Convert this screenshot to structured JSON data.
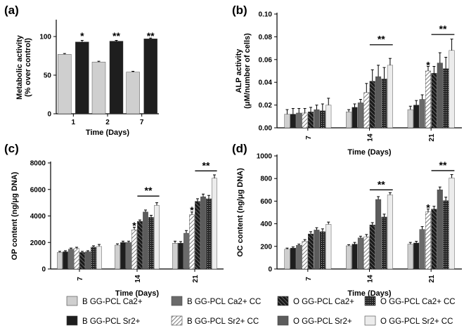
{
  "colors": {
    "b_ca": "#cfcfcf",
    "b_sr": "#1e1e1e",
    "b_ca_cc": "#6a6a6a",
    "b_sr_cc": "hatch-light",
    "o_ca": "hatch-dark",
    "o_sr": "#5c5c5c",
    "o_ca_cc": "dotted-dark",
    "o_sr_cc": "#ececec"
  },
  "legend": [
    {
      "key": "b_ca",
      "label": "B GG-PCL Ca2+"
    },
    {
      "key": "b_ca_cc",
      "label": "B GG-PCL Ca2+ CC"
    },
    {
      "key": "o_ca",
      "label": "O GG-PCL Ca2+"
    },
    {
      "key": "o_ca_cc",
      "label": "O GG-PCL Ca2+ CC"
    },
    {
      "key": "b_sr",
      "label": "B GG-PCL Sr2+"
    },
    {
      "key": "b_sr_cc",
      "label": "B GG-PCL Sr2+ CC"
    },
    {
      "key": "o_sr",
      "label": "O GG-PCL Sr2+"
    },
    {
      "key": "o_sr_cc",
      "label": "O GG-PCL Sr2+ CC"
    }
  ],
  "chart_data": [
    {
      "id": "a",
      "panel_label": "(a)",
      "type": "bar",
      "xlabel": "Time (Days)",
      "ylabel": [
        "Metabolic activity",
        "(% over control)"
      ],
      "ylim": [
        0,
        120
      ],
      "yticks": [
        0,
        50,
        100
      ],
      "categories": [
        "1",
        "2",
        "7"
      ],
      "series": [
        {
          "key": "b_ca",
          "values": [
            77,
            67,
            54
          ],
          "err": [
            1,
            1,
            1
          ]
        },
        {
          "key": "b_sr",
          "values": [
            93,
            94,
            97
          ],
          "err": [
            2,
            1,
            1
          ]
        }
      ],
      "annotations": [
        {
          "text": "*",
          "category": 0,
          "series": 1,
          "y": 102
        },
        {
          "text": "**",
          "category": 1,
          "series": 1,
          "y": 102
        },
        {
          "text": "**",
          "category": 2,
          "series": 1,
          "y": 102
        }
      ]
    },
    {
      "id": "b",
      "panel_label": "(b)",
      "type": "bar",
      "xlabel": "Time (Days)",
      "ylabel": [
        "ALP activity",
        "(μM/number of cells)"
      ],
      "ylim": [
        0,
        0.1
      ],
      "yticks": [
        0,
        0.02,
        0.04,
        0.06,
        0.08,
        0.1
      ],
      "ytick_labels": [
        "0.00",
        "0.02",
        "0.04",
        "0.06",
        "0.08",
        "0.10"
      ],
      "categories": [
        "7",
        "14",
        "21"
      ],
      "series": [
        {
          "key": "b_ca",
          "values": [
            0.012,
            0.014,
            0.016
          ],
          "err": [
            0.004,
            0.002,
            0.003
          ]
        },
        {
          "key": "b_sr",
          "values": [
            0.012,
            0.018,
            0.02
          ],
          "err": [
            0.005,
            0.003,
            0.004
          ]
        },
        {
          "key": "b_ca_cc",
          "values": [
            0.013,
            0.022,
            0.025
          ],
          "err": [
            0.004,
            0.003,
            0.004
          ]
        },
        {
          "key": "b_sr_cc",
          "values": [
            0.013,
            0.031,
            0.05
          ],
          "err": [
            0.004,
            0.008,
            0.004
          ]
        },
        {
          "key": "o_ca",
          "values": [
            0.014,
            0.041,
            0.048
          ],
          "err": [
            0.004,
            0.01,
            0.006
          ]
        },
        {
          "key": "o_sr",
          "values": [
            0.016,
            0.045,
            0.057
          ],
          "err": [
            0.004,
            0.01,
            0.009
          ]
        },
        {
          "key": "o_ca_cc",
          "values": [
            0.015,
            0.043,
            0.052
          ],
          "err": [
            0.006,
            0.01,
            0.01
          ]
        },
        {
          "key": "o_sr_cc",
          "values": [
            0.02,
            0.055,
            0.068
          ],
          "err": [
            0.006,
            0.006,
            0.01
          ]
        }
      ],
      "annotations": [
        {
          "text": "*",
          "category": 2,
          "series": 3,
          "y": 0.056
        }
      ],
      "brackets": [
        {
          "text": "**",
          "category": 1,
          "from": 4,
          "to": 7,
          "y": 0.073
        },
        {
          "text": "**",
          "category": 2,
          "from": 4,
          "to": 7,
          "y": 0.082
        }
      ]
    },
    {
      "id": "c",
      "panel_label": "(c)",
      "type": "bar",
      "xlabel": "Time (Days)",
      "ylabel": [
        "OP content (ng/μg DNA)"
      ],
      "ylim": [
        0,
        8000
      ],
      "yticks": [
        0,
        2000,
        4000,
        6000,
        8000
      ],
      "categories": [
        "7",
        "14",
        "21"
      ],
      "series": [
        {
          "key": "b_ca",
          "values": [
            1250,
            1800,
            1950
          ],
          "err": [
            80,
            100,
            150
          ]
        },
        {
          "key": "b_sr",
          "values": [
            1300,
            2000,
            1950
          ],
          "err": [
            80,
            100,
            120
          ]
        },
        {
          "key": "b_ca_cc",
          "values": [
            1500,
            2000,
            2700
          ],
          "err": [
            80,
            100,
            200
          ]
        },
        {
          "key": "b_sr_cc",
          "values": [
            1550,
            2950,
            4100
          ],
          "err": [
            90,
            200,
            200
          ]
        },
        {
          "key": "o_ca",
          "values": [
            1250,
            3600,
            5100
          ],
          "err": [
            80,
            100,
            200
          ]
        },
        {
          "key": "o_sr",
          "values": [
            1300,
            4300,
            5450
          ],
          "err": [
            80,
            150,
            200
          ]
        },
        {
          "key": "o_ca_cc",
          "values": [
            1650,
            3900,
            5300
          ],
          "err": [
            100,
            150,
            250
          ]
        },
        {
          "key": "o_sr_cc",
          "values": [
            1700,
            4800,
            6850
          ],
          "err": [
            150,
            200,
            250
          ]
        }
      ],
      "annotations": [
        {
          "text": "*",
          "category": 1,
          "series": 3,
          "y": 3350
        },
        {
          "text": "*",
          "category": 2,
          "series": 3,
          "y": 4500
        }
      ],
      "brackets": [
        {
          "text": "**",
          "category": 1,
          "from": 4,
          "to": 7,
          "y": 5500
        },
        {
          "text": "**",
          "category": 2,
          "from": 4,
          "to": 7,
          "y": 7400
        }
      ]
    },
    {
      "id": "d",
      "panel_label": "(d)",
      "type": "bar",
      "xlabel": "Time (Days)",
      "ylabel": [
        "OC content (ng/μg DNA)"
      ],
      "ylim": [
        0,
        1000
      ],
      "yticks": [
        0,
        200,
        400,
        600,
        800,
        1000
      ],
      "categories": [
        "7",
        "14",
        "21"
      ],
      "series": [
        {
          "key": "b_ca",
          "values": [
            175,
            205,
            220
          ],
          "err": [
            10,
            10,
            15
          ]
        },
        {
          "key": "b_sr",
          "values": [
            185,
            220,
            230
          ],
          "err": [
            10,
            15,
            15
          ]
        },
        {
          "key": "b_ca_cc",
          "values": [
            210,
            275,
            350
          ],
          "err": [
            10,
            15,
            25
          ]
        },
        {
          "key": "b_sr_cc",
          "values": [
            245,
            285,
            505
          ],
          "err": [
            15,
            20,
            25
          ]
        },
        {
          "key": "o_ca",
          "values": [
            310,
            390,
            530
          ],
          "err": [
            20,
            20,
            25
          ]
        },
        {
          "key": "o_sr",
          "values": [
            345,
            615,
            700
          ],
          "err": [
            20,
            25,
            25
          ]
        },
        {
          "key": "o_ca_cc",
          "values": [
            330,
            460,
            605
          ],
          "err": [
            25,
            25,
            30
          ]
        },
        {
          "key": "o_sr_cc",
          "values": [
            395,
            655,
            805
          ],
          "err": [
            20,
            20,
            30
          ]
        }
      ],
      "annotations": [
        {
          "text": "*",
          "category": 2,
          "series": 3,
          "y": 550
        }
      ],
      "brackets": [
        {
          "text": "**",
          "category": 1,
          "from": 4,
          "to": 7,
          "y": 700
        },
        {
          "text": "**",
          "category": 2,
          "from": 4,
          "to": 7,
          "y": 870
        }
      ]
    }
  ]
}
